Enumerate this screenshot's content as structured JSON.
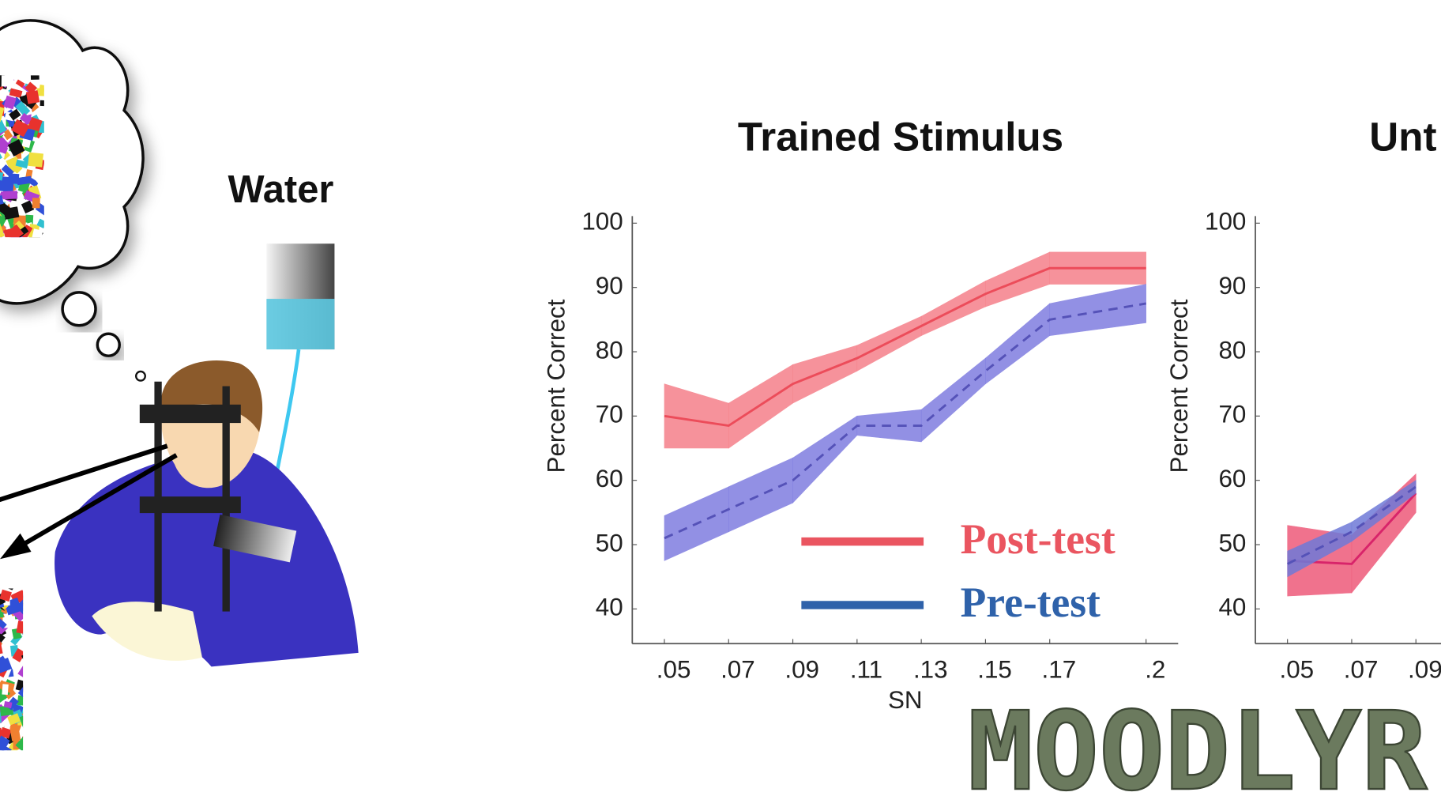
{
  "illustration": {
    "label": "Water"
  },
  "watermark": "MOODLYR",
  "chart_data": [
    {
      "type": "line",
      "title": "Trained Stimulus",
      "xlabel": "SN",
      "ylabel": "Percent Correct",
      "xlim": [
        0.04,
        0.21
      ],
      "ylim": [
        34.6,
        101.1
      ],
      "xticks": [
        {
          "value": 0.05,
          "label": ".05"
        },
        {
          "value": 0.07,
          "label": ".07"
        },
        {
          "value": 0.09,
          "label": ".09"
        },
        {
          "value": 0.11,
          "label": ".11"
        },
        {
          "value": 0.13,
          "label": ".13"
        },
        {
          "value": 0.15,
          "label": ".15"
        },
        {
          "value": 0.17,
          "label": ".17"
        },
        {
          "value": 0.2,
          "label": ".2"
        }
      ],
      "yticks": [
        40,
        50,
        60,
        70,
        80,
        90,
        100
      ],
      "legend": "lower right",
      "series": [
        {
          "name": "Post-test",
          "color": "#ec4c5a",
          "band_color": "#f5808a",
          "legend_color": "#ea5560",
          "dashed": false,
          "x": [
            0.05,
            0.07,
            0.09,
            0.11,
            0.13,
            0.15,
            0.17,
            0.2
          ],
          "values": [
            70,
            68.5,
            75,
            79,
            84,
            89,
            93,
            93
          ],
          "errors": [
            5,
            3.5,
            3,
            2,
            1.5,
            2,
            2.5,
            2.5
          ]
        },
        {
          "name": "Pre-test",
          "color": "#5552b8",
          "band_color": "#7f7de0",
          "legend_color": "#2f62aa",
          "dashed": true,
          "x": [
            0.05,
            0.07,
            0.09,
            0.11,
            0.13,
            0.15,
            0.17,
            0.2
          ],
          "values": [
            51,
            55.5,
            60,
            68.5,
            68.5,
            77,
            85,
            87.5
          ],
          "errors": [
            3.5,
            3.5,
            3.5,
            1.5,
            2.5,
            2,
            2.5,
            3
          ]
        }
      ]
    },
    {
      "type": "line",
      "title": "Unt",
      "ylabel": "Percent Correct",
      "xlim": [
        0.04,
        0.21
      ],
      "ylim": [
        34.6,
        101.1
      ],
      "xticks": [
        {
          "value": 0.05,
          "label": ".05"
        },
        {
          "value": 0.07,
          "label": ".07"
        },
        {
          "value": 0.09,
          "label": ".09"
        }
      ],
      "yticks": [
        40,
        50,
        60,
        70,
        80,
        90,
        100
      ],
      "series": [
        {
          "color": "#d8246a",
          "band_color": "#ee5a7a",
          "dashed": false,
          "x": [
            0.05,
            0.07,
            0.09
          ],
          "values": [
            47.5,
            47,
            58
          ],
          "errors": [
            5.5,
            4.5,
            3
          ]
        },
        {
          "color": "#5552b8",
          "band_color": "#6f7ad8",
          "dashed": true,
          "x": [
            0.05,
            0.07,
            0.09
          ],
          "values": [
            47,
            52,
            59
          ],
          "errors": [
            2,
            1.5,
            1
          ]
        }
      ]
    }
  ]
}
